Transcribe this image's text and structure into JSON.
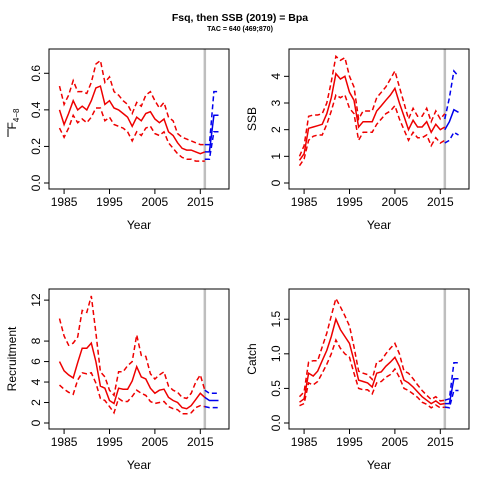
{
  "title": "Fsq, then SSB (2019) = Bpa",
  "subtitle": "TAC = 640 (469;870)",
  "colors": {
    "history": "#ee0000",
    "forecast": "#0000ee",
    "divider": "#bebebe",
    "axis": "#000000"
  },
  "chart_data": [
    {
      "type": "line",
      "ylabel_main": "F",
      "ylabel_sub": "4−8",
      "xlabel": "Year",
      "xlim": [
        1983,
        2020
      ],
      "ylim": [
        0,
        0.7
      ],
      "xticks": [
        "1985",
        "1995",
        "2005",
        "2015"
      ],
      "yticks": [
        "0.0",
        "0.2",
        "0.4",
        "0.6"
      ],
      "divider_year": 2016,
      "history": {
        "years": [
          1984,
          1985,
          1986,
          1987,
          1988,
          1989,
          1990,
          1991,
          1992,
          1993,
          1994,
          1995,
          1996,
          1997,
          1998,
          1999,
          2000,
          2001,
          2002,
          2003,
          2004,
          2005,
          2006,
          2007,
          2008,
          2009,
          2010,
          2011,
          2012,
          2013,
          2014,
          2015,
          2016
        ],
        "estimate": [
          0.4,
          0.32,
          0.38,
          0.45,
          0.4,
          0.42,
          0.4,
          0.45,
          0.52,
          0.53,
          0.43,
          0.45,
          0.41,
          0.4,
          0.38,
          0.36,
          0.31,
          0.36,
          0.34,
          0.38,
          0.39,
          0.35,
          0.33,
          0.35,
          0.28,
          0.26,
          0.22,
          0.19,
          0.18,
          0.18,
          0.17,
          0.16,
          0.17
        ],
        "upper": [
          0.53,
          0.43,
          0.48,
          0.56,
          0.5,
          0.5,
          0.49,
          0.55,
          0.65,
          0.67,
          0.55,
          0.58,
          0.5,
          0.48,
          0.45,
          0.43,
          0.38,
          0.44,
          0.42,
          0.48,
          0.5,
          0.45,
          0.41,
          0.44,
          0.36,
          0.34,
          0.27,
          0.25,
          0.24,
          0.23,
          0.22,
          0.21,
          0.21
        ],
        "lower": [
          0.3,
          0.25,
          0.3,
          0.37,
          0.33,
          0.35,
          0.33,
          0.36,
          0.41,
          0.41,
          0.34,
          0.36,
          0.32,
          0.31,
          0.3,
          0.28,
          0.23,
          0.28,
          0.26,
          0.3,
          0.31,
          0.27,
          0.26,
          0.28,
          0.22,
          0.19,
          0.16,
          0.14,
          0.13,
          0.13,
          0.12,
          0.12,
          0.12
        ]
      },
      "forecast": {
        "years": [
          2016,
          2017,
          2018,
          2019
        ],
        "estimate": [
          0.17,
          0.17,
          0.37,
          0.37
        ],
        "upper": [
          0.21,
          0.21,
          0.5,
          0.5
        ],
        "lower": [
          0.13,
          0.13,
          0.28,
          0.28
        ]
      }
    },
    {
      "type": "line",
      "ylabel_main": "SSB",
      "ylabel_sub": "",
      "xlabel": "Year",
      "xlim": [
        1983,
        2020
      ],
      "ylim": [
        0,
        4.8
      ],
      "xticks": [
        "1985",
        "1995",
        "2005",
        "2015"
      ],
      "yticks": [
        "0",
        "1",
        "2",
        "3",
        "4"
      ],
      "divider_year": 2016,
      "history": {
        "years": [
          1984,
          1985,
          1986,
          1987,
          1988,
          1989,
          1990,
          1991,
          1992,
          1993,
          1994,
          1995,
          1996,
          1997,
          1998,
          1999,
          2000,
          2001,
          2002,
          2003,
          2004,
          2005,
          2006,
          2007,
          2008,
          2009,
          2010,
          2011,
          2012,
          2013,
          2014,
          2015,
          2016
        ],
        "estimate": [
          0.85,
          1.1,
          2.05,
          2.1,
          2.15,
          2.2,
          2.6,
          3.2,
          4.1,
          3.9,
          4.0,
          3.4,
          3.1,
          2.1,
          2.3,
          2.3,
          2.3,
          2.7,
          2.9,
          3.1,
          3.3,
          3.55,
          3.0,
          2.5,
          2.0,
          2.35,
          2.1,
          2.1,
          2.3,
          1.9,
          2.2,
          2.0,
          2.1
        ],
        "upper": [
          1.0,
          1.4,
          2.5,
          2.55,
          2.55,
          2.6,
          3.0,
          3.8,
          4.75,
          4.6,
          4.7,
          4.0,
          3.6,
          2.4,
          2.7,
          2.7,
          2.7,
          3.2,
          3.4,
          3.6,
          3.9,
          4.2,
          3.6,
          3.0,
          2.4,
          2.8,
          2.5,
          2.5,
          2.8,
          2.3,
          2.7,
          2.4,
          2.6
        ],
        "lower": [
          0.65,
          0.9,
          1.6,
          1.75,
          1.8,
          1.8,
          2.2,
          2.7,
          3.3,
          3.2,
          3.3,
          2.8,
          2.6,
          1.6,
          1.9,
          1.9,
          1.9,
          2.2,
          2.4,
          2.6,
          2.7,
          2.9,
          2.4,
          2.0,
          1.6,
          1.9,
          1.7,
          1.7,
          1.8,
          1.4,
          1.7,
          1.5,
          1.6
        ]
      },
      "forecast": {
        "years": [
          2016,
          2017,
          2018,
          2019
        ],
        "estimate": [
          2.0,
          2.3,
          2.75,
          2.65
        ],
        "upper": [
          2.4,
          3.2,
          4.2,
          4.0
        ],
        "lower": [
          1.5,
          1.6,
          1.9,
          1.8
        ]
      }
    },
    {
      "type": "line",
      "ylabel_main": "Recruitment",
      "ylabel_sub": "",
      "xlabel": "Year",
      "xlim": [
        1983,
        2020
      ],
      "ylim": [
        0,
        12.5
      ],
      "xticks": [
        "1985",
        "1995",
        "2005",
        "2015"
      ],
      "yticks": [
        "0",
        "2",
        "4",
        "6",
        "8",
        "12"
      ],
      "divider_year": 2016,
      "history": {
        "years": [
          1984,
          1985,
          1986,
          1987,
          1988,
          1989,
          1990,
          1991,
          1992,
          1993,
          1994,
          1995,
          1996,
          1997,
          1998,
          1999,
          2000,
          2001,
          2002,
          2003,
          2004,
          2005,
          2006,
          2007,
          2008,
          2009,
          2010,
          2011,
          2012,
          2013,
          2014,
          2015,
          2016
        ],
        "estimate": [
          6.0,
          5.1,
          4.7,
          4.4,
          5.9,
          7.3,
          7.3,
          7.8,
          6.0,
          3.6,
          3.4,
          2.2,
          1.9,
          3.4,
          3.3,
          3.3,
          4.1,
          5.5,
          4.5,
          4.3,
          3.4,
          2.9,
          3.2,
          3.3,
          2.5,
          2.2,
          2.0,
          1.5,
          1.4,
          1.7,
          2.3,
          2.9,
          2.5
        ],
        "upper": [
          10.2,
          8.5,
          7.6,
          7.8,
          8.4,
          11.0,
          10.8,
          12.4,
          8.8,
          5.0,
          4.5,
          3.2,
          2.7,
          5.0,
          5.0,
          5.6,
          6.0,
          8.6,
          6.6,
          6.5,
          4.8,
          4.3,
          4.7,
          5.0,
          3.6,
          3.2,
          3.0,
          2.5,
          2.4,
          2.9,
          4.0,
          4.7,
          3.2
        ],
        "lower": [
          3.7,
          3.3,
          3.0,
          2.8,
          4.2,
          4.9,
          4.8,
          4.9,
          3.9,
          2.4,
          2.2,
          1.6,
          1.0,
          2.4,
          2.1,
          2.1,
          2.6,
          3.2,
          2.9,
          2.7,
          2.1,
          1.9,
          2.0,
          2.1,
          1.6,
          1.4,
          1.3,
          0.9,
          0.9,
          1.0,
          1.5,
          1.7,
          1.6
        ]
      },
      "forecast": {
        "years": [
          2016,
          2017,
          2018,
          2019
        ],
        "estimate": [
          2.5,
          2.2,
          2.2,
          2.2
        ],
        "upper": [
          3.2,
          2.9,
          2.9,
          2.9
        ],
        "lower": [
          1.6,
          1.5,
          1.5,
          1.5
        ]
      }
    },
    {
      "type": "line",
      "ylabel_main": "Catch",
      "ylabel_sub": "",
      "xlabel": "Year",
      "xlim": [
        1983,
        2020
      ],
      "ylim": [
        0,
        1.85
      ],
      "xticks": [
        "1985",
        "1995",
        "2005",
        "2015"
      ],
      "yticks": [
        "0.0",
        "0.5",
        "1.0",
        "1.5"
      ],
      "divider_year": 2016,
      "history": {
        "years": [
          1984,
          1985,
          1986,
          1987,
          1988,
          1989,
          1990,
          1991,
          1992,
          1993,
          1994,
          1995,
          1996,
          1997,
          1998,
          1999,
          2000,
          2001,
          2002,
          2003,
          2004,
          2005,
          2006,
          2007,
          2008,
          2009,
          2010,
          2011,
          2012,
          2013,
          2014,
          2015,
          2016
        ],
        "estimate": [
          0.3,
          0.35,
          0.72,
          0.68,
          0.75,
          0.9,
          1.05,
          1.25,
          1.5,
          1.35,
          1.25,
          1.15,
          0.9,
          0.62,
          0.6,
          0.58,
          0.52,
          0.72,
          0.74,
          0.82,
          0.88,
          0.95,
          0.82,
          0.62,
          0.58,
          0.52,
          0.45,
          0.38,
          0.33,
          0.28,
          0.32,
          0.27,
          0.28
        ],
        "upper": [
          0.38,
          0.45,
          0.88,
          0.9,
          0.9,
          1.1,
          1.3,
          1.55,
          1.8,
          1.68,
          1.55,
          1.4,
          1.1,
          0.75,
          0.72,
          0.7,
          0.63,
          0.88,
          0.9,
          1.0,
          1.08,
          1.15,
          1.0,
          0.75,
          0.72,
          0.64,
          0.55,
          0.47,
          0.4,
          0.34,
          0.38,
          0.32,
          0.33
        ],
        "lower": [
          0.25,
          0.28,
          0.58,
          0.55,
          0.6,
          0.72,
          0.85,
          1.0,
          1.2,
          1.08,
          1.0,
          0.95,
          0.72,
          0.5,
          0.48,
          0.48,
          0.42,
          0.58,
          0.6,
          0.66,
          0.7,
          0.78,
          0.66,
          0.5,
          0.47,
          0.42,
          0.37,
          0.3,
          0.27,
          0.22,
          0.26,
          0.22,
          0.23
        ]
      },
      "forecast": {
        "years": [
          2016,
          2017,
          2018,
          2019
        ],
        "estimate": [
          0.28,
          0.28,
          0.64,
          0.64
        ],
        "upper": [
          0.33,
          0.35,
          0.87,
          0.87
        ],
        "lower": [
          0.23,
          0.22,
          0.47,
          0.47
        ]
      }
    }
  ]
}
